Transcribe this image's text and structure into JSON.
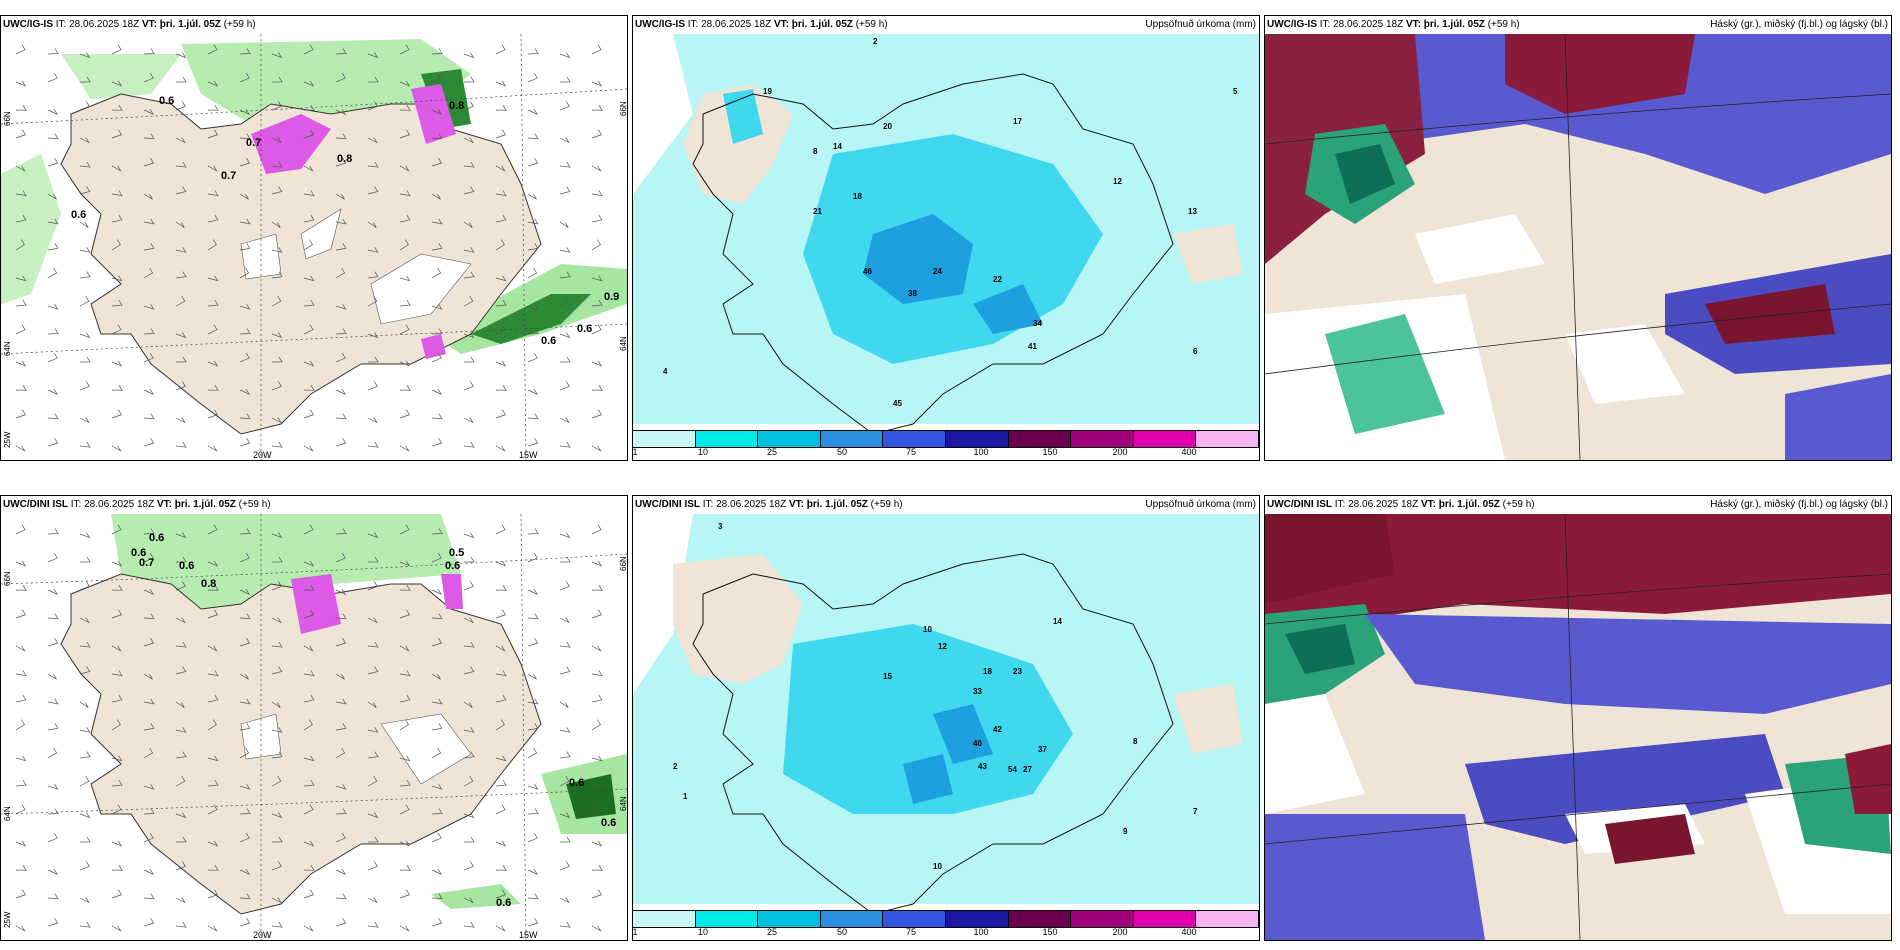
{
  "panels": {
    "p1": {
      "model": "UWC/IG-IS",
      "it_label": "IT:",
      "it": "28.06.2025 18Z",
      "vt_label": "VT:",
      "vt": "þri. 1.júl. 05Z",
      "lead": "(+59 h)",
      "right_title": ""
    },
    "p2": {
      "model": "UWC/IG-IS",
      "it_label": "IT:",
      "it": "28.06.2025 18Z",
      "vt_label": "VT:",
      "vt": "þri. 1.júl. 05Z",
      "lead": "(+59 h)",
      "right_title": "Uppsöfnuð úrkoma (mm)"
    },
    "p3": {
      "model": "UWC/IG-IS",
      "it_label": "IT:",
      "it": "28.06.2025 18Z",
      "vt_label": "VT:",
      "vt": "þri. 1.júl. 05Z",
      "lead": "(+59 h)",
      "right_title": "Háský (gr.), miðský (fj.bl.) og lágský (bl.)"
    },
    "p4": {
      "model": "UWC/DINI ISL",
      "it_label": "IT:",
      "it": "28.06.2025 18Z",
      "vt_label": "VT:",
      "vt": "þri. 1.júl. 05Z",
      "lead": "(+59 h)",
      "right_title": ""
    },
    "p5": {
      "model": "UWC/DINI ISL",
      "it_label": "IT:",
      "it": "28.06.2025 18Z",
      "vt_label": "VT:",
      "vt": "þri. 1.júl. 05Z",
      "lead": "(+59 h)",
      "right_title": "Uppsöfnuð úrkoma (mm)"
    },
    "p6": {
      "model": "UWC/DINI ISL",
      "it_label": "IT:",
      "it": "28.06.2025 18Z",
      "vt_label": "VT:",
      "vt": "þri. 1.júl. 05Z",
      "lead": "(+59 h)",
      "right_title": "Háský (gr.), miðský (fj.bl.) og lágský (bl.)"
    }
  },
  "axis_labels": {
    "lat66": "66N",
    "lat64": "64N",
    "lon25": "25W",
    "lon20": "20W",
    "lon15": "15W"
  },
  "legend": {
    "ticks": [
      "1",
      "10",
      "25",
      "50",
      "75",
      "100",
      "150",
      "200",
      "400"
    ],
    "colors": [
      "#c8f7f7",
      "#00e8e8",
      "#00c0e0",
      "#2a8fe0",
      "#3355e0",
      "#1a1aa0",
      "#6a0050",
      "#a0007a",
      "#e000b0",
      "#f5b5f0"
    ]
  },
  "colors": {
    "land": "#efe4d6",
    "precip_light": "#b8f5f5",
    "precip_mid": "#40d8ee",
    "precip_heavy": "#1ea0e0",
    "low_cloud": "#4b4bc2",
    "mid_cloud": "#25a86a",
    "high_cloud": "#7a1530",
    "wind_green": "#aeeaa6",
    "wind_dark": "#1c6e22",
    "wind_magenta": "#dc5ae6"
  },
  "p1_values": [
    "0.6",
    "0.7",
    "0.7",
    "0.8",
    "0.9",
    "0.6",
    "0.6",
    "0.8",
    "0.6"
  ],
  "p2_values": [
    "2",
    "19",
    "14",
    "17",
    "20",
    "18",
    "8",
    "21",
    "46",
    "38",
    "24",
    "22",
    "34",
    "41",
    "45",
    "12",
    "13",
    "4",
    "6",
    "5"
  ],
  "p4_values": [
    "0.6",
    "0.6",
    "0.7",
    "0.6",
    "0.5",
    "0.6",
    "0.8",
    "0.6",
    "0.6",
    "0.6"
  ],
  "p5_values": [
    "3",
    "14",
    "10",
    "12",
    "15",
    "33",
    "18",
    "23",
    "42",
    "40",
    "37",
    "43",
    "54",
    "27",
    "8",
    "7",
    "9",
    "10",
    "2",
    "1"
  ]
}
